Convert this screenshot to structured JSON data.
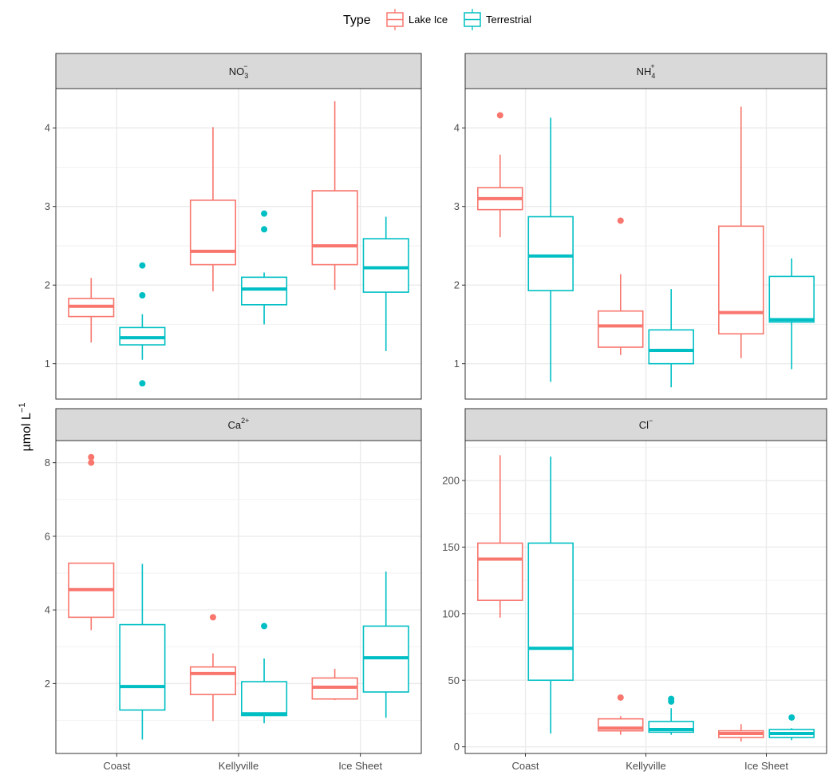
{
  "legend": {
    "title": "Type",
    "items": [
      {
        "label": "Lake Ice",
        "color": "#F8766D"
      },
      {
        "label": "Terrestrial",
        "color": "#00BFC4"
      }
    ]
  },
  "ylabel": "µmol L",
  "ylabel_sup": "−1",
  "categories": [
    "Coast",
    "Kellyville",
    "Ice Sheet"
  ],
  "chart_data": [
    {
      "type": "box",
      "panel_title": {
        "base": "NO",
        "sub": "3",
        "sup": "−"
      },
      "ylim": [
        0.55,
        4.5
      ],
      "yticks": [
        1,
        2,
        3,
        4
      ],
      "series": [
        {
          "name": "Lake Ice",
          "boxes": [
            {
              "category": "Coast",
              "lower_whisker": 1.27,
              "q1": 1.6,
              "median": 1.73,
              "q3": 1.83,
              "upper_whisker": 2.09,
              "outliers": []
            },
            {
              "category": "Kellyville",
              "lower_whisker": 1.92,
              "q1": 2.26,
              "median": 2.43,
              "q3": 3.08,
              "upper_whisker": 4.01,
              "outliers": []
            },
            {
              "category": "Ice Sheet",
              "lower_whisker": 1.94,
              "q1": 2.26,
              "median": 2.5,
              "q3": 3.2,
              "upper_whisker": 4.34,
              "outliers": []
            }
          ]
        },
        {
          "name": "Terrestrial",
          "boxes": [
            {
              "category": "Coast",
              "lower_whisker": 1.05,
              "q1": 1.24,
              "median": 1.33,
              "q3": 1.46,
              "upper_whisker": 1.63,
              "outliers": [
                2.25,
                1.87,
                0.75
              ]
            },
            {
              "category": "Kellyville",
              "lower_whisker": 1.5,
              "q1": 1.75,
              "median": 1.95,
              "q3": 2.1,
              "upper_whisker": 2.16,
              "outliers": [
                2.91,
                2.71
              ]
            },
            {
              "category": "Ice Sheet",
              "lower_whisker": 1.16,
              "q1": 1.91,
              "median": 2.22,
              "q3": 2.59,
              "upper_whisker": 2.87,
              "outliers": []
            }
          ]
        }
      ]
    },
    {
      "type": "box",
      "panel_title": {
        "base": "NH",
        "sub": "4",
        "sup": "+"
      },
      "ylim": [
        0.55,
        4.5
      ],
      "yticks": [
        1,
        2,
        3,
        4
      ],
      "series": [
        {
          "name": "Lake Ice",
          "boxes": [
            {
              "category": "Coast",
              "lower_whisker": 2.61,
              "q1": 2.96,
              "median": 3.1,
              "q3": 3.24,
              "upper_whisker": 3.66,
              "outliers": [
                4.16
              ]
            },
            {
              "category": "Kellyville",
              "lower_whisker": 1.11,
              "q1": 1.21,
              "median": 1.48,
              "q3": 1.67,
              "upper_whisker": 2.14,
              "outliers": [
                2.82
              ]
            },
            {
              "category": "Ice Sheet",
              "lower_whisker": 1.07,
              "q1": 1.38,
              "median": 1.65,
              "q3": 2.75,
              "upper_whisker": 4.27,
              "outliers": []
            }
          ]
        },
        {
          "name": "Terrestrial",
          "boxes": [
            {
              "category": "Coast",
              "lower_whisker": 0.77,
              "q1": 1.93,
              "median": 2.37,
              "q3": 2.87,
              "upper_whisker": 4.13,
              "outliers": []
            },
            {
              "category": "Kellyville",
              "lower_whisker": 0.7,
              "q1": 1.0,
              "median": 1.17,
              "q3": 1.43,
              "upper_whisker": 1.95,
              "outliers": []
            },
            {
              "category": "Ice Sheet",
              "lower_whisker": 0.93,
              "q1": 1.53,
              "median": 1.56,
              "q3": 2.11,
              "upper_whisker": 2.34,
              "outliers": []
            }
          ]
        }
      ]
    },
    {
      "type": "box",
      "panel_title": {
        "base": "Ca",
        "sub": "",
        "sup": "2+"
      },
      "ylim": [
        0.1,
        8.6
      ],
      "yticks": [
        2,
        4,
        6,
        8
      ],
      "series": [
        {
          "name": "Lake Ice",
          "boxes": [
            {
              "category": "Coast",
              "lower_whisker": 3.45,
              "q1": 3.8,
              "median": 4.55,
              "q3": 5.27,
              "upper_whisker": 5.27,
              "outliers": [
                8.15,
                8.0
              ]
            },
            {
              "category": "Kellyville",
              "lower_whisker": 0.98,
              "q1": 1.7,
              "median": 2.27,
              "q3": 2.45,
              "upper_whisker": 2.82,
              "outliers": [
                3.8
              ]
            },
            {
              "category": "Ice Sheet",
              "lower_whisker": 1.55,
              "q1": 1.58,
              "median": 1.9,
              "q3": 2.15,
              "upper_whisker": 2.4,
              "outliers": []
            }
          ]
        },
        {
          "name": "Terrestrial",
          "boxes": [
            {
              "category": "Coast",
              "lower_whisker": 0.48,
              "q1": 1.28,
              "median": 1.92,
              "q3": 3.6,
              "upper_whisker": 5.25,
              "outliers": []
            },
            {
              "category": "Kellyville",
              "lower_whisker": 0.92,
              "q1": 1.13,
              "median": 1.18,
              "q3": 2.05,
              "upper_whisker": 2.68,
              "outliers": [
                3.56
              ]
            },
            {
              "category": "Ice Sheet",
              "lower_whisker": 1.07,
              "q1": 1.77,
              "median": 2.7,
              "q3": 3.56,
              "upper_whisker": 5.04,
              "outliers": []
            }
          ]
        }
      ]
    },
    {
      "type": "box",
      "panel_title": {
        "base": "Cl",
        "sub": "",
        "sup": "−"
      },
      "ylim": [
        -5,
        230
      ],
      "yticks": [
        0,
        50,
        100,
        150,
        200
      ],
      "series": [
        {
          "name": "Lake Ice",
          "boxes": [
            {
              "category": "Coast",
              "lower_whisker": 97,
              "q1": 110,
              "median": 141,
              "q3": 153,
              "upper_whisker": 219,
              "outliers": []
            },
            {
              "category": "Kellyville",
              "lower_whisker": 9,
              "q1": 12,
              "median": 14,
              "q3": 21,
              "upper_whisker": 23,
              "outliers": [
                37
              ]
            },
            {
              "category": "Ice Sheet",
              "lower_whisker": 4,
              "q1": 7,
              "median": 10,
              "q3": 12,
              "upper_whisker": 17,
              "outliers": []
            }
          ]
        },
        {
          "name": "Terrestrial",
          "boxes": [
            {
              "category": "Coast",
              "lower_whisker": 10,
              "q1": 50,
              "median": 74,
              "q3": 153,
              "upper_whisker": 218,
              "outliers": []
            },
            {
              "category": "Kellyville",
              "lower_whisker": 9,
              "q1": 11,
              "median": 13,
              "q3": 19,
              "upper_whisker": 29,
              "outliers": [
                36,
                34
              ]
            },
            {
              "category": "Ice Sheet",
              "lower_whisker": 5,
              "q1": 7,
              "median": 10,
              "q3": 13,
              "upper_whisker": 14,
              "outliers": [
                22
              ]
            }
          ]
        }
      ]
    }
  ]
}
